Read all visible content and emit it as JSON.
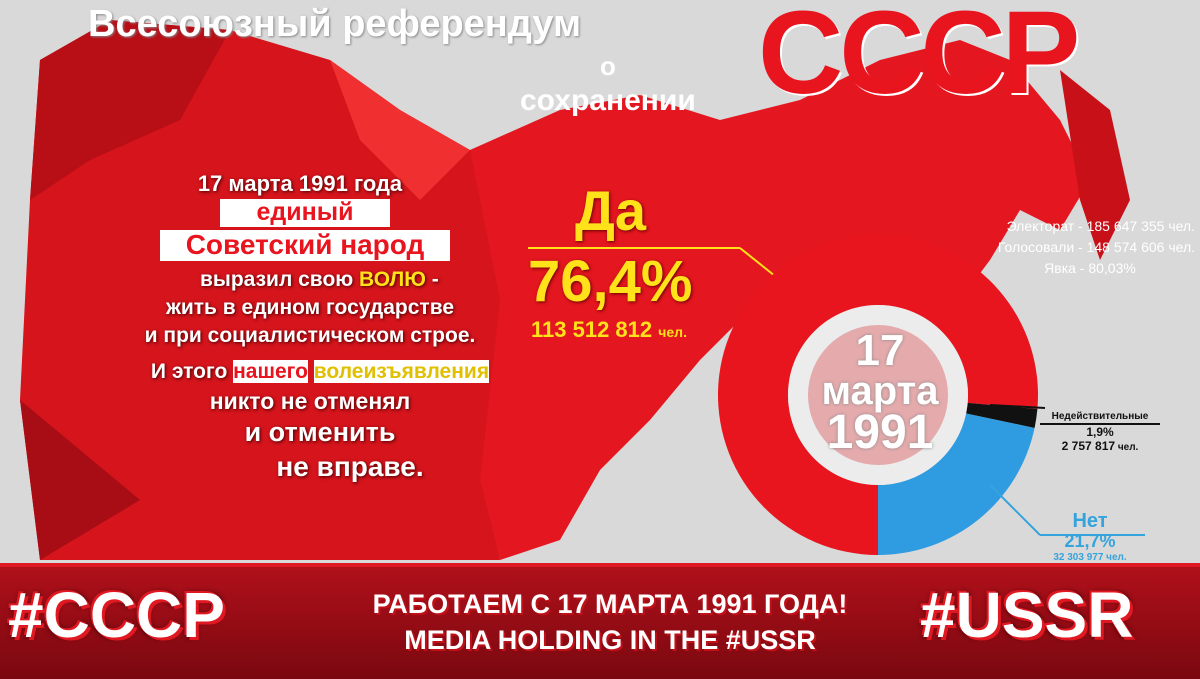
{
  "title": {
    "line1": "Всесоюзный референдум",
    "line2": "о",
    "line3": "сохранении",
    "brand": "СССР"
  },
  "left_text": {
    "l1": "17 марта 1991 года",
    "l2": "единый",
    "l3": "Советский народ",
    "l4a": "выразил свою ",
    "l4b": "ВОЛЮ",
    "l4c": " -",
    "l5": "жить в едином государстве",
    "l6": "и при социалистическом строе.",
    "l7a": "И этого ",
    "l7b": "нашего",
    "l7c": " ",
    "l7d": "волеизъявления",
    "l8": "никто не отменял",
    "l9": "и отменить",
    "l10": "не вправе."
  },
  "stats": {
    "electorate": "Электорат - 185 647 355 чел.",
    "voted": "Голосовали - 148 574 606 чел.",
    "turnout": "Явка - 80,03%"
  },
  "center_date": {
    "day": "17",
    "month": "марта",
    "year": "1991"
  },
  "chart_data": {
    "type": "pie",
    "donut": true,
    "series": [
      {
        "name": "Да",
        "percent_label": "76,4%",
        "count_label": "113 512 812",
        "unit": "чел.",
        "value": 76.4,
        "color": "#e8141e"
      },
      {
        "name": "Недействительные",
        "percent_label": "1,9%",
        "count_label": "2 757 817",
        "unit": "чел.",
        "value": 1.9,
        "color": "#111111"
      },
      {
        "name": "Нет",
        "percent_label": "21,7%",
        "count_label": "32 303 977",
        "unit": "чел.",
        "value": 21.7,
        "color": "#2f9be0"
      }
    ]
  },
  "banner": {
    "left": "#CCCP",
    "right": "#USSR",
    "line1": "РАБОТАЕМ С 17 МАРТА 1991 ГОДА!",
    "line2": "MEDIA HOLDING IN THE #USSR"
  },
  "colors": {
    "red": "#e8141e",
    "yellow": "#ffe21a",
    "blue": "#2f9be0",
    "background": "#d9d9d9"
  }
}
